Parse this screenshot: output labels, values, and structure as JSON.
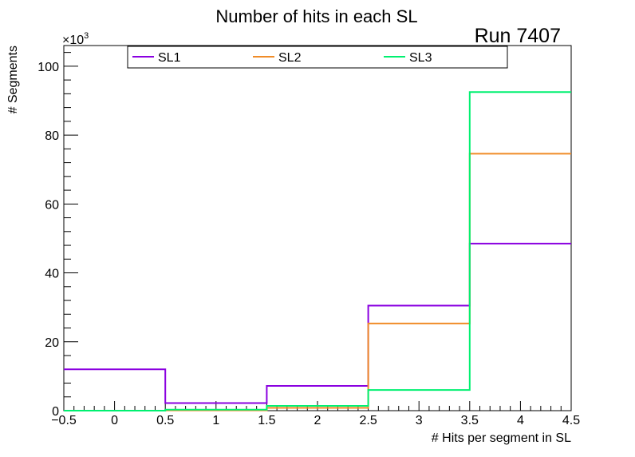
{
  "chart_data": {
    "type": "step-histogram",
    "title": "Number of hits in each SL",
    "run_label": "Run 7407",
    "xlabel": "# Hits per segment in SL",
    "ylabel": "# Segments",
    "y_multiplier_prefix": "×10",
    "y_multiplier_exponent": "3",
    "xlim": [
      -0.5,
      4.5
    ],
    "ylim": [
      0,
      106
    ],
    "x_ticks": [
      -0.5,
      0,
      0.5,
      1,
      1.5,
      2,
      2.5,
      3,
      3.5,
      4,
      4.5
    ],
    "x_tick_labels": [
      "−0.5",
      "0",
      "0.5",
      "1",
      "1.5",
      "2",
      "2.5",
      "3",
      "3.5",
      "4",
      "4.5"
    ],
    "y_ticks": [
      0,
      20,
      40,
      60,
      80,
      100
    ],
    "y_tick_labels": [
      "0",
      "20",
      "40",
      "60",
      "80",
      "100"
    ],
    "bin_edges": [
      -0.5,
      0.5,
      1.5,
      2.5,
      3.5,
      4.5
    ],
    "legend_position": "top",
    "series": [
      {
        "name": "SL1",
        "color": "#8a00e0",
        "values": [
          12.0,
          2.2,
          7.2,
          30.5,
          48.5
        ]
      },
      {
        "name": "SL2",
        "color": "#f08c28",
        "values": [
          0.0,
          0.1,
          0.8,
          25.3,
          74.6
        ]
      },
      {
        "name": "SL3",
        "color": "#00f070",
        "values": [
          0.0,
          0.3,
          1.4,
          6.0,
          92.5
        ]
      }
    ]
  }
}
